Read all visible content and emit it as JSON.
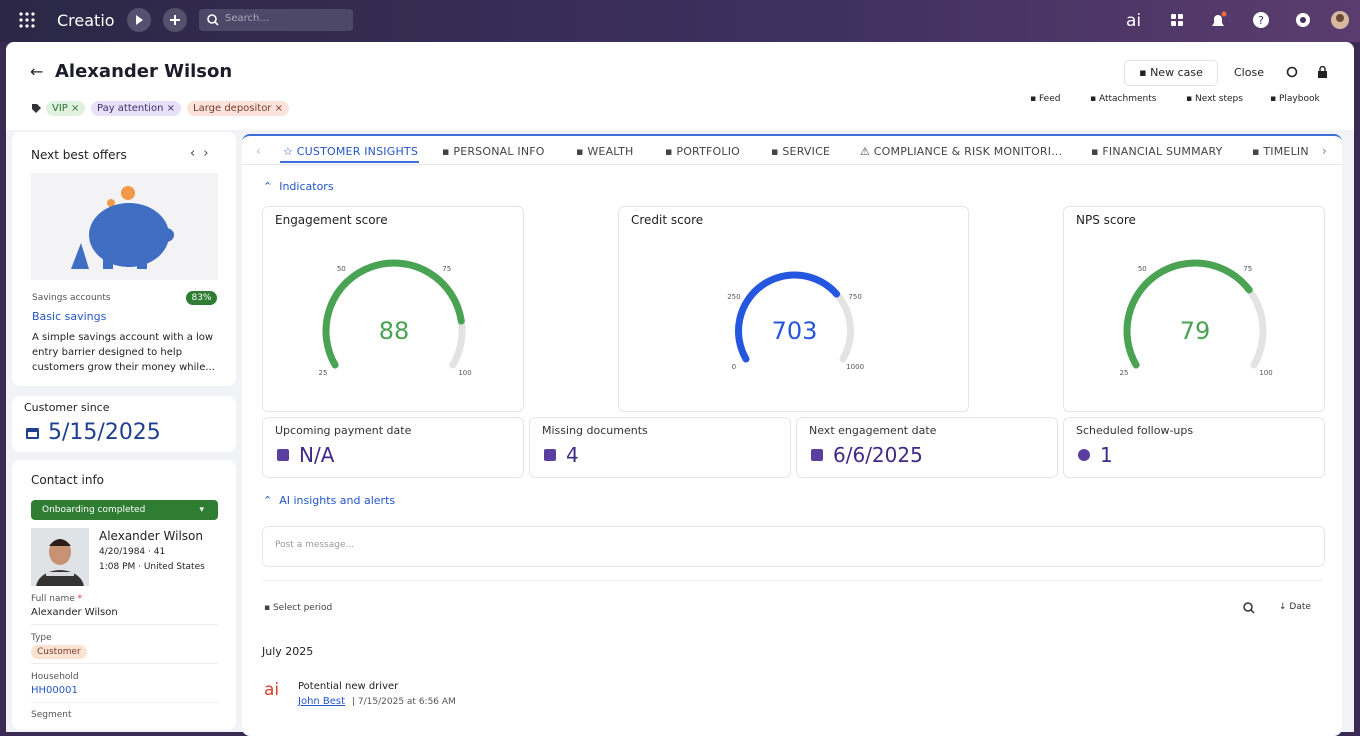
{
  "topbar": {
    "brand": "Creatio",
    "search_placeholder": "Search..."
  },
  "header": {
    "title": "Alexander Wilson",
    "tags": [
      "VIP",
      "Pay attention",
      "Large depositor"
    ],
    "actions": [
      "New case",
      "Close"
    ],
    "links": [
      "Feed",
      "Attachments",
      "Next steps",
      "Playbook"
    ]
  },
  "offers": {
    "title": "Next best offers",
    "category": "Savings accounts",
    "match": "83%",
    "name": "Basic savings",
    "description": "A simple savings account with a low entry barrier designed to help customers grow their money while..."
  },
  "customer_since": {
    "label": "Customer since",
    "value": "5/15/2025"
  },
  "contact": {
    "title": "Contact info",
    "stage": "Onboarding completed",
    "name": "Alexander Wilson",
    "birth": "4/20/1984 · 41",
    "local": "1:08 PM · United States",
    "fields": [
      {
        "label": "Full name",
        "value": "Alexander Wilson"
      },
      {
        "label": "Type",
        "value": "Customer"
      },
      {
        "label": "Household",
        "value": "HH00001"
      },
      {
        "label": "Segment"
      }
    ]
  },
  "tabs": [
    "CUSTOMER INSIGHTS",
    "PERSONAL INFO",
    "WEALTH",
    "PORTFOLIO",
    "SERVICE",
    "COMPLIANCE & RISK MONITORI...",
    "FINANCIAL SUMMARY",
    "TIMELIN"
  ],
  "indicators": {
    "title": "Indicators",
    "gauges": [
      {
        "title": "Engagement score",
        "value": 88,
        "range": [
          25,
          100
        ],
        "ticks": [
          25,
          50,
          75,
          100
        ],
        "color": "#4aa353"
      },
      {
        "title": "Credit score",
        "value": 703,
        "range": [
          0,
          1000
        ],
        "ticks": [
          0,
          250,
          750,
          1000
        ],
        "color": "#2456e0"
      },
      {
        "title": "NPS score",
        "value": 79,
        "range": [
          25,
          100
        ],
        "ticks": [
          25,
          50,
          75,
          100
        ],
        "color": "#4aa353"
      }
    ],
    "stats": [
      {
        "label": "Upcoming payment date",
        "value": "N/A"
      },
      {
        "label": "Missing documents",
        "value": 4
      },
      {
        "label": "Next engagement date",
        "value": "6/6/2025"
      },
      {
        "label": "Scheduled follow-ups",
        "value": 1
      }
    ]
  },
  "ai_insights": {
    "title": "AI insights and alerts",
    "placeholder": "Post a message...",
    "period": "Select period",
    "sort": "Date",
    "month": "July 2025",
    "items": [
      {
        "title": "Potential new driver",
        "author": "John Best",
        "time": "7/15/2025 at 6:56 AM"
      }
    ]
  }
}
